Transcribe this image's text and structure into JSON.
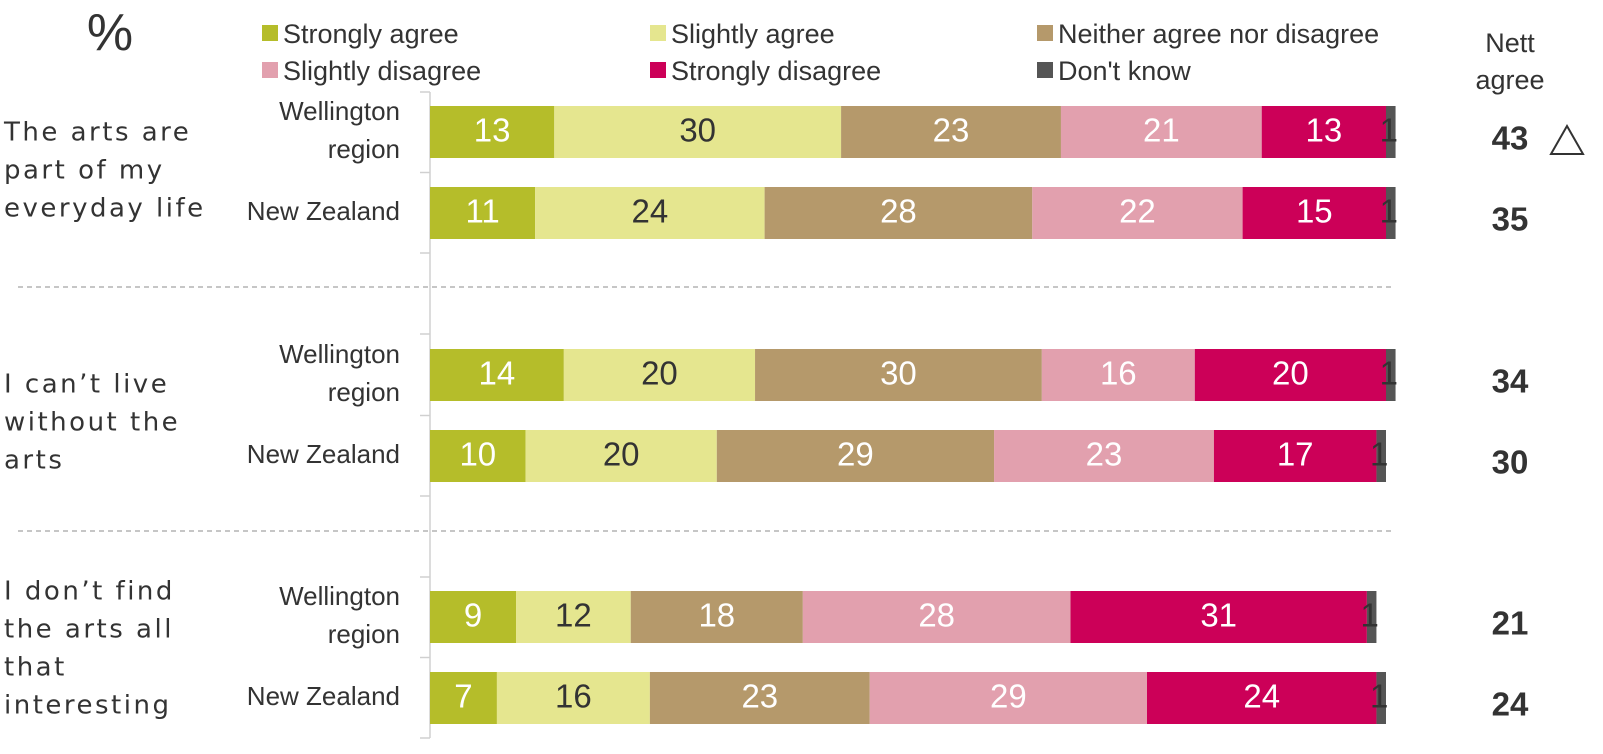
{
  "chart_data": {
    "type": "bar",
    "orientation": "horizontal",
    "stacked": true,
    "percent_symbol": "%",
    "nett_header": "Nett agree",
    "nett_header_lines": [
      "Nett",
      "agree"
    ],
    "xlim": [
      0,
      100
    ],
    "series": [
      {
        "name": "Strongly agree",
        "color": "#b5bd2a"
      },
      {
        "name": "Slightly agree",
        "color": "#e5e68f"
      },
      {
        "name": "Neither agree nor disagree",
        "color": "#b5996b"
      },
      {
        "name": "Slightly disagree",
        "color": "#e2a0ae"
      },
      {
        "name": "Strongly disagree",
        "color": "#cc0058"
      },
      {
        "name": "Don't know",
        "color": "#555555"
      }
    ],
    "value_label_colors": [
      "#ffffff",
      "#333333",
      "#ffffff",
      "#ffffff",
      "#ffffff",
      "#333333"
    ],
    "significance_marker": "higher-triangle",
    "groups": [
      {
        "statement": "The arts are part of my everyday life",
        "statement_lines": [
          "The arts are",
          "part of my",
          "everyday life"
        ],
        "rows": [
          {
            "label": "Wellington region",
            "label_lines": [
              "Wellington",
              "region"
            ],
            "values": [
              13,
              30,
              23,
              21,
              13,
              1
            ],
            "nett_agree": 43,
            "significant": true
          },
          {
            "label": "New Zealand",
            "label_lines": [
              "New Zealand"
            ],
            "values": [
              11,
              24,
              28,
              22,
              15,
              1
            ],
            "nett_agree": 35,
            "significant": false
          }
        ]
      },
      {
        "statement": "I can’t live without the arts",
        "statement_lines": [
          "I can’t live",
          "without the",
          "arts"
        ],
        "rows": [
          {
            "label": "Wellington region",
            "label_lines": [
              "Wellington",
              "region"
            ],
            "values": [
              14,
              20,
              30,
              16,
              20,
              1
            ],
            "nett_agree": 34,
            "significant": false
          },
          {
            "label": "New Zealand",
            "label_lines": [
              "New Zealand"
            ],
            "values": [
              10,
              20,
              29,
              23,
              17,
              1
            ],
            "nett_agree": 30,
            "significant": false
          }
        ]
      },
      {
        "statement": "I don’t find the arts all that interesting",
        "statement_lines": [
          "I don’t find",
          "the arts all",
          "that",
          "interesting"
        ],
        "rows": [
          {
            "label": "Wellington region",
            "label_lines": [
              "Wellington",
              "region"
            ],
            "values": [
              9,
              12,
              18,
              28,
              31,
              1
            ],
            "nett_agree": 21,
            "significant": false
          },
          {
            "label": "New Zealand",
            "label_lines": [
              "New Zealand"
            ],
            "values": [
              7,
              16,
              23,
              29,
              24,
              1
            ],
            "nett_agree": 24,
            "significant": false
          }
        ]
      }
    ]
  }
}
